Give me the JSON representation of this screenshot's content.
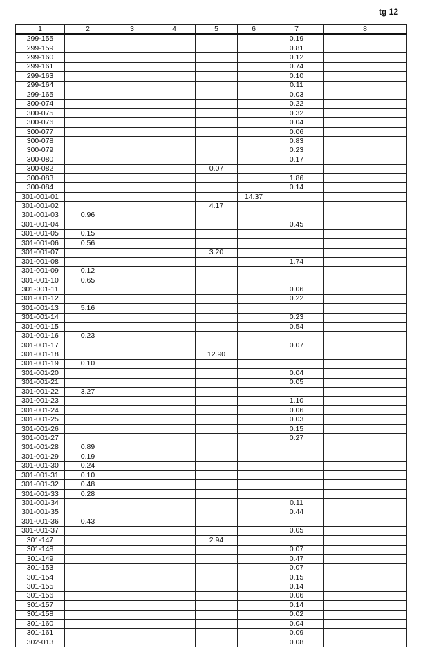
{
  "page_label": "tg 12",
  "columns": [
    "1",
    "2",
    "3",
    "4",
    "5",
    "6",
    "7",
    "8"
  ],
  "rows": [
    {
      "c1": "299-155",
      "c7": "0.19"
    },
    {
      "c1": "299-159",
      "c7": "0.81"
    },
    {
      "c1": "299-160",
      "c7": "0.12"
    },
    {
      "c1": "299-161",
      "c7": "0.74"
    },
    {
      "c1": "299-163",
      "c7": "0.10"
    },
    {
      "c1": "299-164",
      "c7": "0.11"
    },
    {
      "c1": "299-165",
      "c7": "0.03"
    },
    {
      "c1": "300-074",
      "c7": "0.22"
    },
    {
      "c1": "300-075",
      "c7": "0.32"
    },
    {
      "c1": "300-076",
      "c7": "0.04"
    },
    {
      "c1": "300-077",
      "c7": "0.06"
    },
    {
      "c1": "300-078",
      "c7": "0.83"
    },
    {
      "c1": "300-079",
      "c7": "0.23"
    },
    {
      "c1": "300-080",
      "c7": "0.17"
    },
    {
      "c1": "300-082",
      "c5": "0.07"
    },
    {
      "c1": "300-083",
      "c7": "1.86"
    },
    {
      "c1": "300-084",
      "c7": "0.14"
    },
    {
      "c1": "301-001-01",
      "c6": "14.37"
    },
    {
      "c1": "301-001-02",
      "c5": "4.17"
    },
    {
      "c1": "301-001-03",
      "c2": "0.96"
    },
    {
      "c1": "301-001-04",
      "c7": "0.45"
    },
    {
      "c1": "301-001-05",
      "c2": "0.15"
    },
    {
      "c1": "301-001-06",
      "c2": "0.56"
    },
    {
      "c1": "301-001-07",
      "c5": "3.20"
    },
    {
      "c1": "301-001-08",
      "c7": "1.74"
    },
    {
      "c1": "301-001-09",
      "c2": "0.12"
    },
    {
      "c1": "301-001-10",
      "c2": "0.65"
    },
    {
      "c1": "301-001-11",
      "c7": "0.06"
    },
    {
      "c1": "301-001-12",
      "c7": "0.22"
    },
    {
      "c1": "301-001-13",
      "c2": "5.16"
    },
    {
      "c1": "301-001-14",
      "c7": "0.23"
    },
    {
      "c1": "301-001-15",
      "c7": "0.54"
    },
    {
      "c1": "301-001-16",
      "c2": "0.23"
    },
    {
      "c1": "301-001-17",
      "c7": "0.07"
    },
    {
      "c1": "301-001-18",
      "c5": "12.90"
    },
    {
      "c1": "301-001-19",
      "c2": "0.10"
    },
    {
      "c1": "301-001-20",
      "c7": "0.04"
    },
    {
      "c1": "301-001-21",
      "c7": "0.05"
    },
    {
      "c1": "301-001-22",
      "c2": "3.27"
    },
    {
      "c1": "301-001-23",
      "c7": "1.10"
    },
    {
      "c1": "301-001-24",
      "c7": "0.06"
    },
    {
      "c1": "301-001-25",
      "c7": "0.03"
    },
    {
      "c1": "301-001-26",
      "c7": "0.15"
    },
    {
      "c1": "301-001-27",
      "c7": "0.27"
    },
    {
      "c1": "301-001-28",
      "c2": "0.89"
    },
    {
      "c1": "301-001-29",
      "c2": "0.19"
    },
    {
      "c1": "301-001-30",
      "c2": "0.24"
    },
    {
      "c1": "301-001-31",
      "c2": "0.10"
    },
    {
      "c1": "301-001-32",
      "c2": "0.48"
    },
    {
      "c1": "301-001-33",
      "c2": "0.28"
    },
    {
      "c1": "301-001-34",
      "c7": "0.11"
    },
    {
      "c1": "301-001-35",
      "c7": "0.44"
    },
    {
      "c1": "301-001-36",
      "c2": "0.43"
    },
    {
      "c1": "301-001-37",
      "c7": "0.05"
    },
    {
      "c1": "301-147",
      "c5": "2.94"
    },
    {
      "c1": "301-148",
      "c7": "0.07"
    },
    {
      "c1": "301-149",
      "c7": "0.47"
    },
    {
      "c1": "301-153",
      "c7": "0.07"
    },
    {
      "c1": "301-154",
      "c7": "0.15"
    },
    {
      "c1": "301-155",
      "c7": "0.14"
    },
    {
      "c1": "301-156",
      "c7": "0.06"
    },
    {
      "c1": "301-157",
      "c7": "0.14"
    },
    {
      "c1": "301-158",
      "c7": "0.02"
    },
    {
      "c1": "301-160",
      "c7": "0.04"
    },
    {
      "c1": "301-161",
      "c7": "0.09"
    },
    {
      "c1": "302-013",
      "c7": "0.08"
    }
  ]
}
